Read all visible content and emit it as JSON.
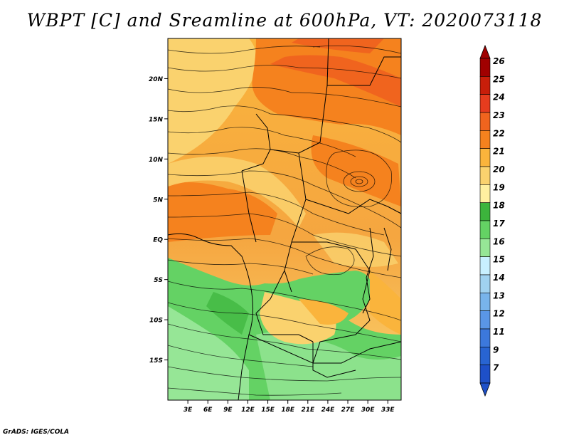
{
  "title": "WBPT [C] and Sreamline at 600hPa, VT: 2020073118",
  "credit": "GrADS: IGES/COLA",
  "map": {
    "lat_labels": [
      "20N",
      "15N",
      "10N",
      "5N",
      "EQ",
      "5S",
      "10S",
      "15S"
    ],
    "lat_values": [
      20,
      15,
      10,
      5,
      0,
      -5,
      -10,
      -15
    ],
    "lon_labels": [
      "3E",
      "6E",
      "9E",
      "12E",
      "15E",
      "18E",
      "21E",
      "24E",
      "27E",
      "30E",
      "33E"
    ],
    "lon_values": [
      3,
      6,
      9,
      12,
      15,
      18,
      21,
      24,
      27,
      30,
      33
    ],
    "lon_range": [
      0,
      35
    ],
    "lat_range": [
      -20,
      25
    ]
  },
  "colorbar": {
    "labels": [
      "26",
      "25",
      "24",
      "23",
      "22",
      "21",
      "20",
      "19",
      "18",
      "17",
      "16",
      "15",
      "14",
      "13",
      "12",
      "11",
      "9",
      "7"
    ],
    "colors": [
      "#a00000",
      "#c81e0a",
      "#e63c1e",
      "#f0641e",
      "#f5821e",
      "#fab43c",
      "#fad26e",
      "#fff0a0",
      "#3cb43c",
      "#64d264",
      "#96e696",
      "#c8f0ff",
      "#a0d2f0",
      "#78b4eb",
      "#5a96e6",
      "#3c78dc",
      "#2864d2",
      "#1e50c8"
    ],
    "top_arrow_color": "#a00000",
    "bottom_arrow_color": "#1e50c8"
  }
}
